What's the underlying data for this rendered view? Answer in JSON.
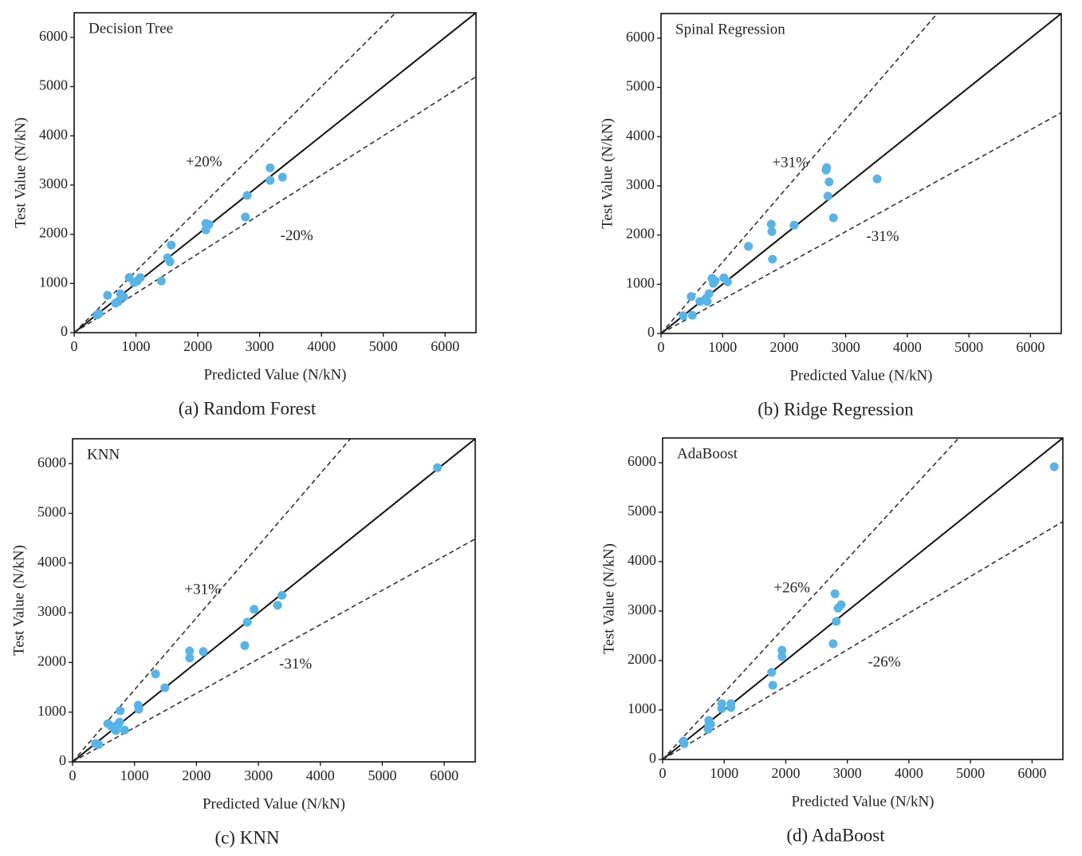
{
  "chart_data": [
    {
      "type": "scatter",
      "title": "Decision Tree",
      "caption": "(a) Random Forest",
      "x_label": "Predicted Value (N/kN)",
      "y_label": "Test Value (N/kN)",
      "color": "#56b4e9",
      "xlim": [
        0,
        6500
      ],
      "ylim": [
        0,
        6500
      ],
      "xticks": [
        0,
        1000,
        2000,
        3000,
        4000,
        5000,
        6000
      ],
      "yticks": [
        0,
        1000,
        2000,
        3000,
        4000,
        5000,
        6000
      ],
      "bands": [
        {
          "value": 20,
          "label": "+20%"
        },
        {
          "value": -20,
          "label": "-20%"
        }
      ],
      "x": [
        3170,
        3170,
        3370,
        2800,
        2770,
        2130,
        2180,
        2130,
        1570,
        1510,
        1550,
        1410,
        890,
        1070,
        1020,
        970,
        540,
        750,
        800,
        710,
        670,
        400,
        370
      ],
      "values": [
        3350,
        3095,
        3160,
        2790,
        2350,
        2220,
        2200,
        2090,
        1780,
        1520,
        1440,
        1050,
        1120,
        1120,
        1050,
        1020,
        760,
        790,
        730,
        630,
        600,
        390,
        360
      ]
    },
    {
      "type": "scatter",
      "title": "Spinal Regression",
      "caption": "(b) Ridge Regression",
      "x_label": "Predicted Value (N/kN)",
      "y_label": "Test Value (N/kN)",
      "color": "#56b4e9",
      "xlim": [
        0,
        6500
      ],
      "ylim": [
        0,
        6500
      ],
      "xticks": [
        0,
        1000,
        2000,
        3000,
        4000,
        5000,
        6000
      ],
      "yticks": [
        0,
        1000,
        2000,
        3000,
        4000,
        5000,
        6000
      ],
      "bands": [
        {
          "value": 31,
          "label": "+31%"
        },
        {
          "value": -31,
          "label": "-31%"
        }
      ],
      "x": [
        2690,
        2680,
        2730,
        2710,
        2800,
        3510,
        1790,
        2160,
        1800,
        1420,
        1810,
        830,
        1020,
        850,
        880,
        1080,
        490,
        780,
        730,
        630,
        750,
        360,
        510
      ],
      "values": [
        3370,
        3320,
        3080,
        2790,
        2350,
        3140,
        2220,
        2200,
        2070,
        1770,
        1510,
        1120,
        1130,
        1020,
        1070,
        1050,
        750,
        810,
        710,
        650,
        650,
        360,
        370
      ]
    },
    {
      "type": "scatter",
      "title": "KNN",
      "caption": "(c) KNN",
      "x_label": "Predicted Value (N/kN)",
      "y_label": "Test Value (N/kN)",
      "color": "#56b4e9",
      "xlim": [
        0,
        6500
      ],
      "ylim": [
        0,
        6500
      ],
      "xticks": [
        0,
        1000,
        2000,
        3000,
        4000,
        5000,
        6000
      ],
      "yticks": [
        0,
        1000,
        2000,
        3000,
        4000,
        5000,
        6000
      ],
      "bands": [
        {
          "value": 31,
          "label": "+31%"
        },
        {
          "value": -31,
          "label": "-31%"
        }
      ],
      "x": [
        5890,
        3380,
        3310,
        2930,
        2820,
        2780,
        1890,
        2110,
        1890,
        1340,
        1490,
        1060,
        1070,
        770,
        570,
        730,
        760,
        670,
        700,
        840,
        620,
        370,
        420
      ],
      "values": [
        5920,
        3350,
        3150,
        3070,
        2810,
        2340,
        2230,
        2220,
        2090,
        1770,
        1490,
        1140,
        1060,
        1030,
        770,
        750,
        800,
        670,
        630,
        640,
        720,
        370,
        350
      ]
    },
    {
      "type": "scatter",
      "title": "AdaBoost",
      "caption": "(d) AdaBoost",
      "x_label": "Predicted Value (N/kN)",
      "y_label": "Test Value (N/kN)",
      "color": "#56b4e9",
      "xlim": [
        0,
        6500
      ],
      "ylim": [
        0,
        6500
      ],
      "xticks": [
        0,
        1000,
        2000,
        3000,
        4000,
        5000,
        6000
      ],
      "yticks": [
        0,
        1000,
        2000,
        3000,
        4000,
        5000,
        6000
      ],
      "bands": [
        {
          "value": 26,
          "label": "+26%"
        },
        {
          "value": -26,
          "label": "-26%"
        }
      ],
      "x": [
        6360,
        2800,
        2900,
        2850,
        2820,
        2770,
        1940,
        1940,
        1770,
        1790,
        960,
        1110,
        960,
        1110,
        750,
        780,
        740,
        750,
        340,
        350
      ],
      "values": [
        5920,
        3350,
        3130,
        3060,
        2790,
        2340,
        2210,
        2080,
        1760,
        1500,
        1130,
        1130,
        1030,
        1050,
        790,
        710,
        610,
        690,
        370,
        320
      ]
    }
  ]
}
